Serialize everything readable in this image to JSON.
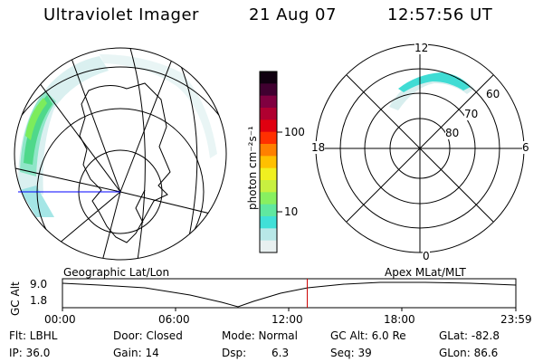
{
  "header": {
    "title": "Ultraviolet Imager",
    "date": "21 Aug 07",
    "time": "12:57:56 UT"
  },
  "colorbar": {
    "unit_label": "photon cm⁻²s⁻¹",
    "ticks": [
      "100",
      "10"
    ],
    "colors": [
      "#e8f0f0",
      "#b8e8e8",
      "#40e0d8",
      "#60e8a0",
      "#88f060",
      "#c8f040",
      "#f0f020",
      "#ffc000",
      "#ff8000",
      "#ff3000",
      "#e00010",
      "#b00030",
      "#800040",
      "#400030",
      "#100010"
    ]
  },
  "polar_plot": {
    "mlt_labels": {
      "top": "12",
      "left": "18",
      "right": "6",
      "bottom": "0"
    },
    "lat_labels": [
      "60",
      "70",
      "80"
    ]
  },
  "timeline": {
    "y_axis_label": "GC Alt",
    "y_ticks": [
      "9.0",
      "1.8"
    ],
    "left_title": "Geographic Lat/Lon",
    "right_title": "Apex MLat/MLT",
    "x_ticks": [
      "00:00",
      "06:00",
      "12:00",
      "18:00",
      "23:59"
    ],
    "current_time_fraction": 0.54
  },
  "info": {
    "flt": "Flt: LBHL",
    "door": "Door: Closed",
    "mode": "Mode: Normal",
    "gc_alt": "GC Alt: 6.0 Re",
    "glat": "GLat: -82.8",
    "ip": "IP: 36.0",
    "gain": "Gain: 14",
    "dsp_label": "Dsp:",
    "dsp_value": "6.3",
    "seq": "Seq: 39",
    "glon": "GLon: 86.6"
  }
}
